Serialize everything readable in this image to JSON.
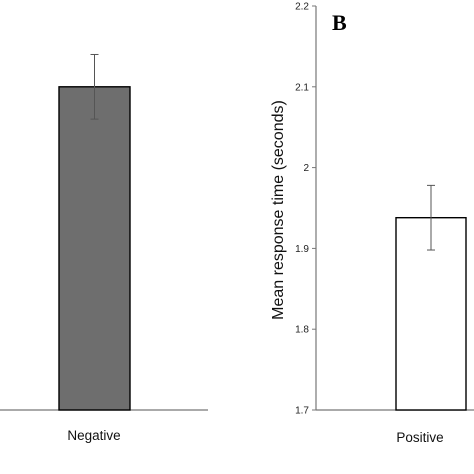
{
  "chart_data": [
    {
      "type": "bar",
      "panel": "",
      "categories": [
        "Negative"
      ],
      "values": [
        2.1
      ],
      "error": [
        0.04
      ],
      "bar_colors": [
        "#6e6e6e"
      ],
      "ylim": [
        1.7,
        2.2
      ],
      "ylabel": "",
      "xlabel": "",
      "y_ticks": [],
      "grid": false
    },
    {
      "type": "bar",
      "panel": "B",
      "categories": [
        "Positive"
      ],
      "values": [
        1.938
      ],
      "error": [
        0.04
      ],
      "bar_colors": [
        "#ffffff"
      ],
      "ylim": [
        1.7,
        2.2
      ],
      "ylabel": "Mean response time (seconds)",
      "xlabel": "",
      "y_ticks": [
        "1.7",
        "1.8",
        "1.9",
        "2",
        "2.1",
        "2.2"
      ],
      "grid": false
    }
  ],
  "colors": {
    "negative_bar": "#6e6e6e",
    "positive_bar": "#ffffff",
    "axis": "#777777",
    "outline": "#000000"
  }
}
